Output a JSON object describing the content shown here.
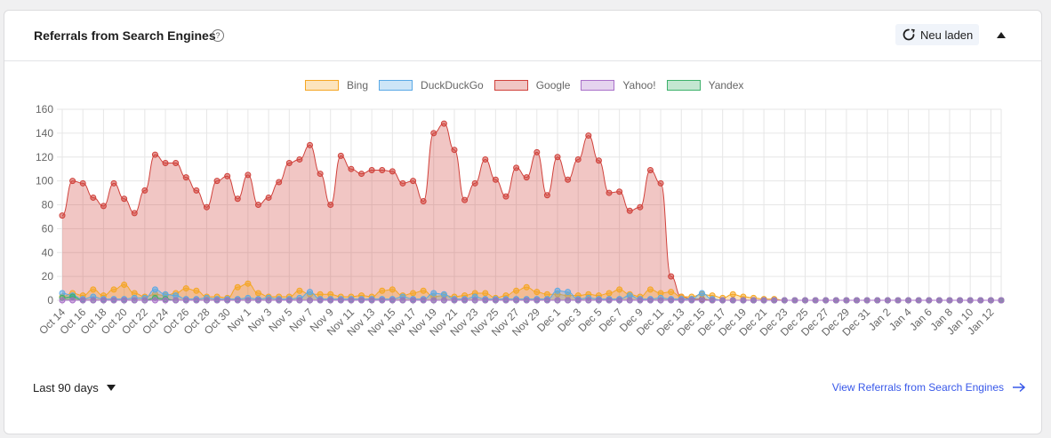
{
  "card": {
    "title": "Referrals from Search Engines",
    "help_glyph": "?",
    "reload_label": "Neu laden"
  },
  "footer": {
    "range_label": "Last 90 days",
    "view_link": "View Referrals from Search Engines"
  },
  "colors": {
    "Bing": "#f5a623",
    "DuckDuckGo": "#5aa9e6",
    "Google": "#d0413b",
    "Yahoo!": "#a970c9",
    "Yandex": "#3db16b"
  },
  "chart_data": {
    "type": "area",
    "ylim": [
      0,
      160
    ],
    "yticks": [
      0,
      20,
      40,
      60,
      80,
      100,
      120,
      140,
      160
    ],
    "grid": true,
    "legend_position": "top",
    "x_tick_labels": [
      "Oct 14",
      "Oct 16",
      "Oct 18",
      "Oct 20",
      "Oct 22",
      "Oct 24",
      "Oct 26",
      "Oct 28",
      "Oct 30",
      "Nov 1",
      "Nov 3",
      "Nov 5",
      "Nov 7",
      "Nov 9",
      "Nov 11",
      "Nov 13",
      "Nov 15",
      "Nov 17",
      "Nov 19",
      "Nov 21",
      "Nov 23",
      "Nov 25",
      "Nov 27",
      "Nov 29",
      "Dec 1",
      "Dec 3",
      "Dec 5",
      "Dec 7",
      "Dec 9",
      "Dec 11",
      "Dec 13",
      "Dec 15",
      "Dec 17",
      "Dec 19",
      "Dec 21",
      "Dec 23",
      "Dec 25",
      "Dec 27",
      "Dec 29",
      "Dec 31",
      "Jan 2",
      "Jan 4",
      "Jan 6",
      "Jan 8",
      "Jan 10",
      "Jan 12"
    ],
    "series": [
      {
        "name": "Bing",
        "values": [
          3,
          6,
          4,
          9,
          4,
          9,
          13,
          6,
          3,
          5,
          4,
          6,
          10,
          8,
          3,
          3,
          2,
          11,
          14,
          6,
          3,
          3,
          3,
          8,
          5,
          5,
          5,
          3,
          3,
          4,
          3,
          8,
          9,
          4,
          6,
          8,
          3,
          4,
          3,
          4,
          6,
          6,
          2,
          4,
          8,
          11,
          7,
          5,
          5,
          4,
          4,
          5,
          4,
          6,
          9,
          5,
          3,
          9,
          6,
          7,
          3,
          3,
          5,
          4,
          2,
          5,
          3,
          2,
          1,
          1,
          0,
          0,
          0,
          0,
          0,
          0,
          0,
          0,
          0,
          0,
          0,
          0,
          0,
          0,
          0,
          0,
          0,
          0,
          0,
          0,
          0,
          0
        ]
      },
      {
        "name": "DuckDuckGo",
        "values": [
          6,
          4,
          1,
          3,
          1,
          1,
          1,
          2,
          2,
          9,
          5,
          4,
          1,
          1,
          2,
          1,
          1,
          1,
          2,
          1,
          2,
          1,
          1,
          2,
          7,
          1,
          1,
          1,
          1,
          1,
          1,
          1,
          1,
          3,
          1,
          1,
          6,
          5,
          1,
          1,
          3,
          1,
          1,
          1,
          1,
          1,
          1,
          1,
          8,
          7,
          1,
          2,
          1,
          1,
          1,
          4,
          1,
          1,
          2,
          1,
          1,
          1,
          6,
          1,
          0,
          0,
          0,
          0,
          0,
          0,
          0,
          0,
          0,
          0,
          0,
          0,
          0,
          0,
          0,
          0,
          0,
          0,
          0,
          0,
          0,
          0,
          0,
          0,
          0,
          0,
          0,
          0
        ]
      },
      {
        "name": "Google",
        "values": [
          71,
          100,
          98,
          86,
          79,
          98,
          85,
          73,
          92,
          122,
          115,
          115,
          103,
          92,
          78,
          100,
          104,
          85,
          105,
          80,
          86,
          99,
          115,
          118,
          130,
          106,
          80,
          121,
          110,
          106,
          109,
          109,
          108,
          98,
          100,
          83,
          140,
          148,
          126,
          84,
          98,
          118,
          101,
          87,
          111,
          103,
          124,
          88,
          120,
          101,
          118,
          138,
          117,
          90,
          91,
          75,
          78,
          109,
          98,
          20,
          3,
          1,
          1,
          0,
          0,
          0,
          0,
          0,
          0,
          0,
          0,
          0,
          0,
          0,
          0,
          0,
          0,
          0,
          0,
          0,
          0,
          0,
          0,
          0,
          0,
          0,
          0,
          0,
          0,
          0,
          0,
          0
        ]
      },
      {
        "name": "Yahoo!",
        "values": [
          0,
          0,
          0,
          0,
          0,
          0,
          0,
          0,
          0,
          0,
          0,
          0,
          0,
          0,
          0,
          0,
          0,
          0,
          0,
          0,
          0,
          0,
          0,
          0,
          0,
          0,
          0,
          0,
          0,
          0,
          0,
          0,
          0,
          0,
          0,
          0,
          0,
          0,
          0,
          0,
          0,
          0,
          0,
          0,
          0,
          0,
          0,
          0,
          0,
          0,
          0,
          0,
          0,
          0,
          0,
          0,
          0,
          0,
          0,
          0,
          0,
          0,
          0,
          0,
          0,
          0,
          0,
          0,
          0,
          0,
          0,
          0,
          0,
          0,
          0,
          0,
          0,
          0,
          0,
          0,
          0,
          0,
          0,
          0,
          0,
          0,
          0,
          0,
          0,
          0,
          0,
          0
        ]
      },
      {
        "name": "Yandex",
        "values": [
          2,
          3,
          0,
          0,
          0,
          0,
          0,
          0,
          0,
          2,
          1,
          0,
          0,
          0,
          0,
          0,
          0,
          0,
          0,
          0,
          0,
          0,
          0,
          0,
          0,
          0,
          0,
          0,
          0,
          0,
          0,
          0,
          0,
          0,
          0,
          0,
          0,
          0,
          0,
          0,
          0,
          0,
          0,
          0,
          0,
          0,
          0,
          0,
          0,
          0,
          0,
          0,
          0,
          0,
          0,
          0,
          0,
          0,
          0,
          0,
          0,
          0,
          0,
          0,
          0,
          0,
          0,
          0,
          0,
          0,
          0,
          0,
          0,
          0,
          0,
          0,
          0,
          0,
          0,
          0,
          0,
          0,
          0,
          0,
          0,
          0,
          0,
          0,
          0,
          0,
          0,
          0
        ]
      }
    ]
  }
}
